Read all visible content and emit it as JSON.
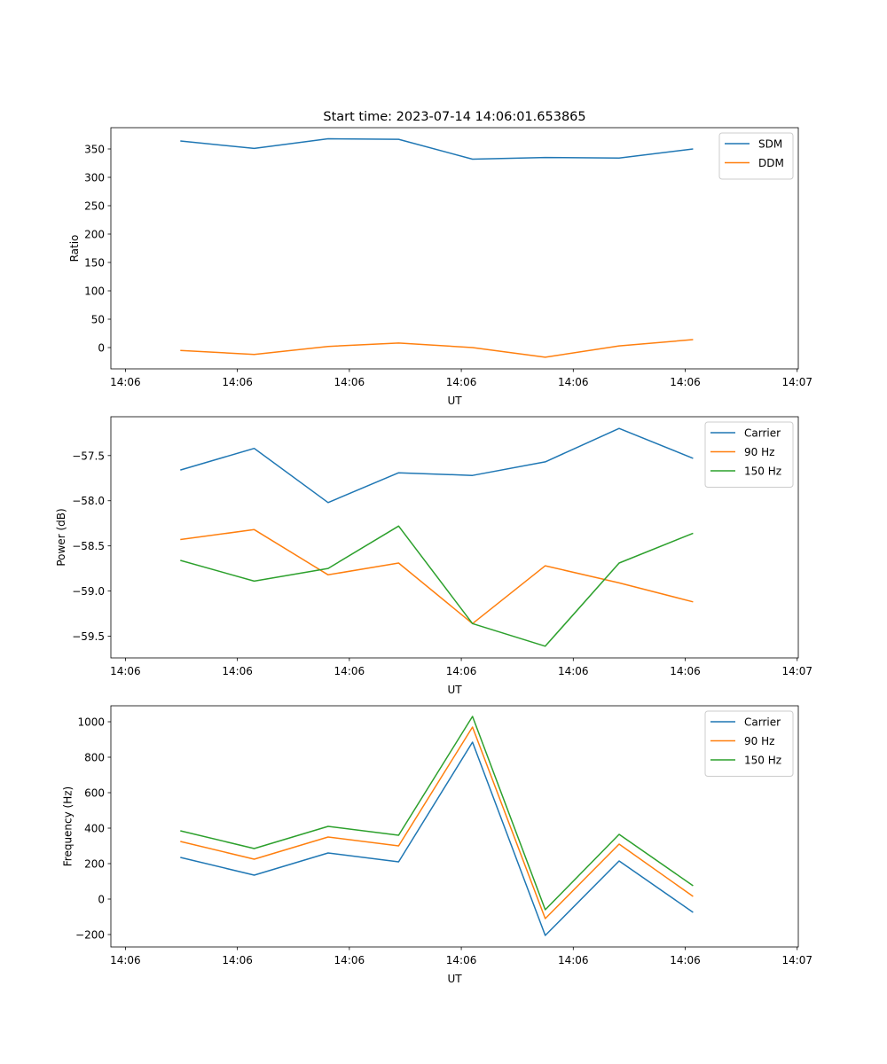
{
  "chart_data": [
    {
      "type": "line",
      "title": "Start time: 2023-07-14 14:06:01.653865",
      "xlabel": "UT",
      "ylabel": "Ratio",
      "x_seconds_after_14_06": [
        4.9,
        11.5,
        18.1,
        24.4,
        31.0,
        37.5,
        44.1,
        50.7
      ],
      "xlim": [
        -1.3,
        60.1
      ],
      "xticks": [
        0,
        10,
        20,
        30,
        40,
        50,
        60
      ],
      "xtick_labels": [
        "14:06",
        "14:06",
        "14:06",
        "14:06",
        "14:06",
        "14:06",
        "14:07"
      ],
      "ylim": [
        -37.5,
        387.5
      ],
      "yticks": [
        0,
        50,
        100,
        150,
        200,
        250,
        300,
        350
      ],
      "ytick_labels": [
        "0",
        "50",
        "100",
        "150",
        "200",
        "250",
        "300",
        "350"
      ],
      "legend": "top-right",
      "series": [
        {
          "name": "SDM",
          "color": "#1f77b4",
          "values": [
            364,
            351,
            368,
            367,
            332,
            335,
            334,
            350
          ]
        },
        {
          "name": "DDM",
          "color": "#ff7f0e",
          "values": [
            -5,
            -12,
            2,
            8,
            0,
            -17,
            3,
            14
          ]
        }
      ]
    },
    {
      "type": "line",
      "xlabel": "UT",
      "ylabel": "Power (dB)",
      "x_seconds_after_14_06": [
        4.9,
        11.5,
        18.1,
        24.4,
        31.0,
        37.5,
        44.1,
        50.7
      ],
      "xlim": [
        -1.3,
        60.1
      ],
      "xticks": [
        0,
        10,
        20,
        30,
        40,
        50,
        60
      ],
      "xtick_labels": [
        "14:06",
        "14:06",
        "14:06",
        "14:06",
        "14:06",
        "14:06",
        "14:07"
      ],
      "ylim": [
        -59.74,
        -57.07
      ],
      "yticks": [
        -59.5,
        -59.0,
        -58.5,
        -58.0,
        -57.5
      ],
      "ytick_labels": [
        "−59.5",
        "−59.0",
        "−58.5",
        "−58.0",
        "−57.5"
      ],
      "legend": "top-right",
      "series": [
        {
          "name": "Carrier",
          "color": "#1f77b4",
          "values": [
            -57.66,
            -57.42,
            -58.02,
            -57.69,
            -57.72,
            -57.57,
            -57.2,
            -57.53
          ]
        },
        {
          "name": "90 Hz",
          "color": "#ff7f0e",
          "values": [
            -58.43,
            -58.32,
            -58.82,
            -58.69,
            -59.36,
            -58.72,
            -58.91,
            -59.12
          ]
        },
        {
          "name": "150 Hz",
          "color": "#2ca02c",
          "values": [
            -58.66,
            -58.89,
            -58.75,
            -58.28,
            -59.36,
            -59.61,
            -58.69,
            -58.36
          ]
        }
      ]
    },
    {
      "type": "line",
      "xlabel": "UT",
      "ylabel": "Frequency (Hz)",
      "x_seconds_after_14_06": [
        4.9,
        11.5,
        18.1,
        24.4,
        31.0,
        37.5,
        44.1,
        50.7
      ],
      "xlim": [
        -1.3,
        60.1
      ],
      "xticks": [
        0,
        10,
        20,
        30,
        40,
        50,
        60
      ],
      "xtick_labels": [
        "14:06",
        "14:06",
        "14:06",
        "14:06",
        "14:06",
        "14:06",
        "14:07"
      ],
      "ylim": [
        -270,
        1090
      ],
      "yticks": [
        -200,
        0,
        200,
        400,
        600,
        800,
        1000
      ],
      "ytick_labels": [
        "−200",
        "0",
        "200",
        "400",
        "600",
        "800",
        "1000"
      ],
      "legend": "top-right",
      "series": [
        {
          "name": "Carrier",
          "color": "#1f77b4",
          "values": [
            235,
            135,
            260,
            210,
            885,
            -205,
            215,
            -75
          ]
        },
        {
          "name": "90 Hz",
          "color": "#ff7f0e",
          "values": [
            325,
            225,
            350,
            300,
            970,
            -110,
            310,
            15
          ]
        },
        {
          "name": "150 Hz",
          "color": "#2ca02c",
          "values": [
            385,
            285,
            410,
            360,
            1030,
            -60,
            365,
            75
          ]
        }
      ]
    }
  ]
}
